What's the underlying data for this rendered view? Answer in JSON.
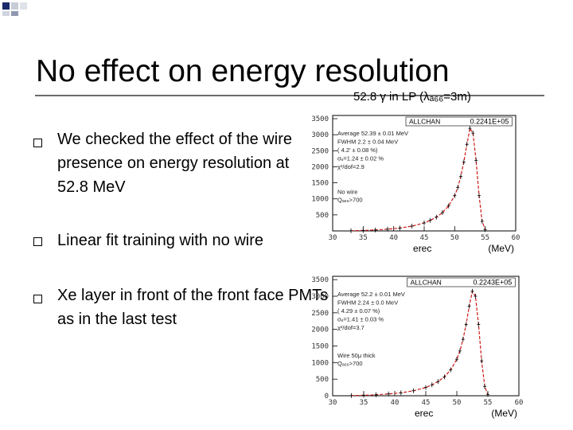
{
  "slide": {
    "title": "No effect on energy resolution",
    "bullets": [
      "We checked the effect of the wire presence on energy resolution at 52.8 MeV",
      "Linear fit training with no wire",
      "Xe layer in front of the front face PMTs as in the last test"
    ]
  },
  "figure_header": "52.8 γ in LP (λₐ₆₆=3m)",
  "chart_data": [
    {
      "type": "histogram",
      "title": "ALLCHAN",
      "entries_label": "0.2241E+05",
      "xlabel": "erec",
      "unit_label": "(MeV)",
      "xlim": [
        30,
        60
      ],
      "ylim": [
        0,
        3600
      ],
      "xticks": [
        "30",
        "35",
        "40",
        "45",
        "50",
        "55",
        "60"
      ],
      "yticks": [
        "500",
        "1000",
        "1500",
        "2000",
        "2500",
        "3000",
        "3500"
      ],
      "fit_lines": [
        "Average 52.39 ± 0.01 MeV",
        "FWHM   2.2 ± 0.04 MeV",
        "( 4.2′ ± 0.08 %)",
        "σₑ=1.24 ± 0.02 %",
        "χ²/dof=2.9"
      ],
      "note_lines": [
        "No wire",
        "Qₐ₆₆>700"
      ],
      "x": [
        33,
        35,
        37,
        39,
        41,
        43,
        45,
        46,
        47,
        48,
        49,
        50,
        50.5,
        51,
        51.5,
        52,
        52.5,
        53,
        53.5,
        54,
        54.5,
        55
      ],
      "y": [
        5,
        15,
        30,
        55,
        90,
        150,
        250,
        330,
        430,
        570,
        780,
        1100,
        1350,
        1700,
        2150,
        2700,
        3200,
        3050,
        2200,
        1100,
        300,
        40
      ]
    },
    {
      "type": "histogram",
      "title": "ALLCHAN",
      "entries_label": "0.2243E+05",
      "xlabel": "erec",
      "unit_label": "(MeV)",
      "xlim": [
        30,
        60
      ],
      "ylim": [
        0,
        3600
      ],
      "xticks": [
        "30",
        "35",
        "40",
        "45",
        "50",
        "55",
        "60"
      ],
      "yticks": [
        "0",
        "500",
        "1000",
        "1500",
        "2000",
        "2500",
        "3000",
        "3500"
      ],
      "fit_lines": [
        "Average 52.2 ± 0.01 MeV",
        "FWHM   2.24 ± 0.0 MeV",
        "( 4.29 ± 0.07 %)",
        "σₑ=1.41 ± 0.03 %",
        "χ²/dof=3.7"
      ],
      "note_lines": [
        "Wire 50μ thick",
        "Qₐ₆₆>700"
      ],
      "x": [
        33,
        35,
        37,
        39,
        41,
        43,
        45,
        46,
        47,
        48,
        49,
        50,
        50.5,
        51,
        51.5,
        52,
        52.5,
        53,
        53.5,
        54,
        54.5,
        55
      ],
      "y": [
        5,
        15,
        30,
        55,
        90,
        150,
        250,
        330,
        430,
        570,
        780,
        1100,
        1350,
        1700,
        2150,
        2700,
        3150,
        3000,
        2150,
        1050,
        280,
        40
      ]
    }
  ]
}
